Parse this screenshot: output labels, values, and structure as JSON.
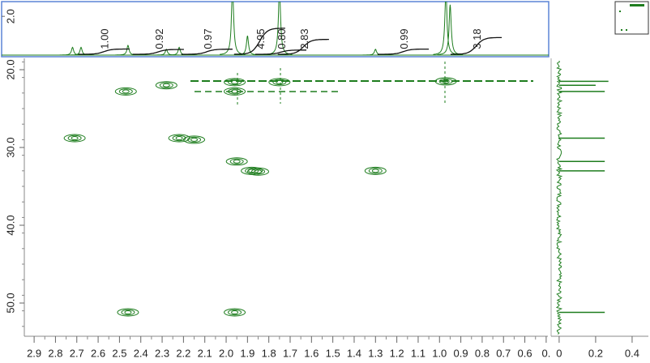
{
  "chart_data": {
    "type": "hsqc",
    "color": "#1e7d1e",
    "xlim": [
      2.946,
      0.492
    ],
    "xticks": [
      2.9,
      2.8,
      2.7,
      2.6,
      2.5,
      2.4,
      2.3,
      2.2,
      2.1,
      {
        "value": 2,
        "label": "2.0"
      },
      1.9,
      1.8,
      1.7,
      1.6,
      1.5,
      1.4,
      1.3,
      1.2,
      1.1,
      {
        "value": 1,
        "label": "1.0"
      },
      0.9,
      0.8,
      0.7,
      0.6,
      {
        "value": 0.5,
        "label": "0."
      }
    ],
    "ylim": [
      18.54,
      54.27
    ],
    "yticks": [
      {
        "value": 20,
        "label": "20.0"
      },
      {
        "value": 30,
        "label": "30.0"
      },
      {
        "value": 40,
        "label": "40.0"
      },
      {
        "value": 50,
        "label": "50.0"
      }
    ],
    "peaks": {
      "x": [
        2.71,
        2.47,
        2.28,
        2.22,
        2.15,
        1.96,
        1.96,
        1.75,
        0.97,
        1.95,
        1.88,
        1.85,
        1.3,
        2.46,
        1.96
      ],
      "y": [
        28.8,
        22.8,
        22.0,
        28.8,
        29.0,
        22.8,
        21.6,
        21.6,
        21.5,
        31.8,
        33.0,
        33.1,
        33.0,
        51.2,
        51.2
      ]
    },
    "top_ylim": [
      0,
      2.76
    ],
    "top_yticks": [
      {
        "value": 2,
        "label": "2.0"
      }
    ],
    "top_peaks": {
      "x": [
        2.72,
        2.68,
        2.46,
        2.28,
        2.22,
        1.97,
        1.9,
        1.75,
        1.3,
        0.97,
        0.95
      ],
      "values": [
        0.4,
        0.4,
        0.5,
        0.3,
        0.4,
        3.5,
        1.0,
        3.5,
        0.3,
        3.3,
        2.6
      ]
    },
    "integrals": {
      "x": [
        2.573,
        2.318,
        2.09,
        1.843,
        1.744,
        1.638,
        1.17,
        0.828
      ],
      "values": [
        1,
        0.92,
        0.97,
        4.95,
        0.8,
        2.83,
        0.99,
        3.18
      ],
      "value_labels": [
        "1.00",
        "0.92",
        "0.97",
        "4.95",
        "0.80",
        "2.83",
        "0.99",
        "3.18"
      ]
    },
    "proj_xlim": [
      -0.044,
      0.498
    ],
    "proj_xticks": [
      0,
      0.2,
      0.4
    ],
    "proj_peaks": {
      "y": [
        21.5,
        22.0,
        22.8,
        28.8,
        31.8,
        33.0,
        51.2
      ],
      "values": [
        0.27,
        0.2,
        0.25,
        0.25,
        0.25,
        0.25,
        0.25
      ]
    }
  }
}
